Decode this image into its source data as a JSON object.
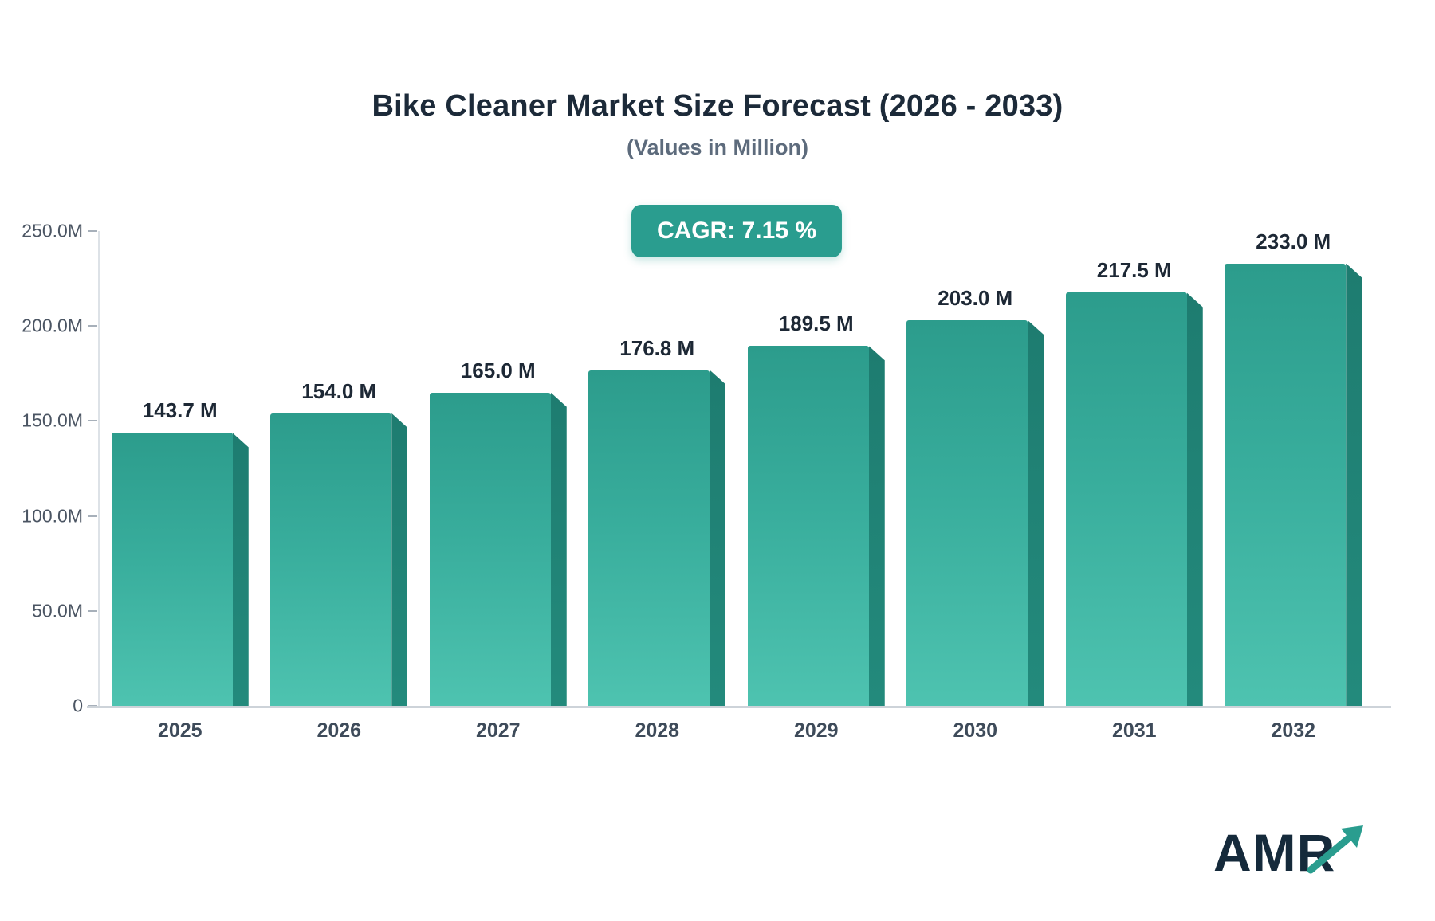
{
  "header": {
    "title": "Bike Cleaner Market Size Forecast (2026 - 2033)",
    "subtitle": "(Values in Million)",
    "cagr_label": "CAGR: 7.15 %"
  },
  "chart_data": {
    "type": "bar",
    "title": "Bike Cleaner Market Size Forecast (2026 - 2033)",
    "subtitle": "(Values in Million)",
    "categories": [
      "2025",
      "2026",
      "2027",
      "2028",
      "2029",
      "2030",
      "2031",
      "2032"
    ],
    "values": [
      143.7,
      154.0,
      165.0,
      176.8,
      189.5,
      203.0,
      217.5,
      233.0
    ],
    "value_labels": [
      "143.7 M",
      "154.0 M",
      "165.0 M",
      "176.8 M",
      "189.5 M",
      "203.0 M",
      "217.5 M",
      "233.0 M"
    ],
    "unit": "Million",
    "xlabel": "",
    "ylabel": "",
    "ylim": [
      0,
      250
    ],
    "yticks": [
      "250.0M",
      "200.0M",
      "150.0M",
      "100.0M",
      "50.0M",
      "0"
    ],
    "ytick_values": [
      250,
      200,
      150,
      100,
      50,
      0
    ],
    "grid": false,
    "legend": false,
    "annotations": [
      "CAGR: 7.15 %"
    ],
    "colors": {
      "bar_top": "#2c9c8c",
      "bar_bottom": "#4ec3b0",
      "bar_side": "#1e7c70",
      "badge": "#2a9d8f",
      "title": "#1c2a39",
      "subtitle": "#5d6b7c"
    }
  },
  "footer": {
    "logo_text": "AMR"
  }
}
